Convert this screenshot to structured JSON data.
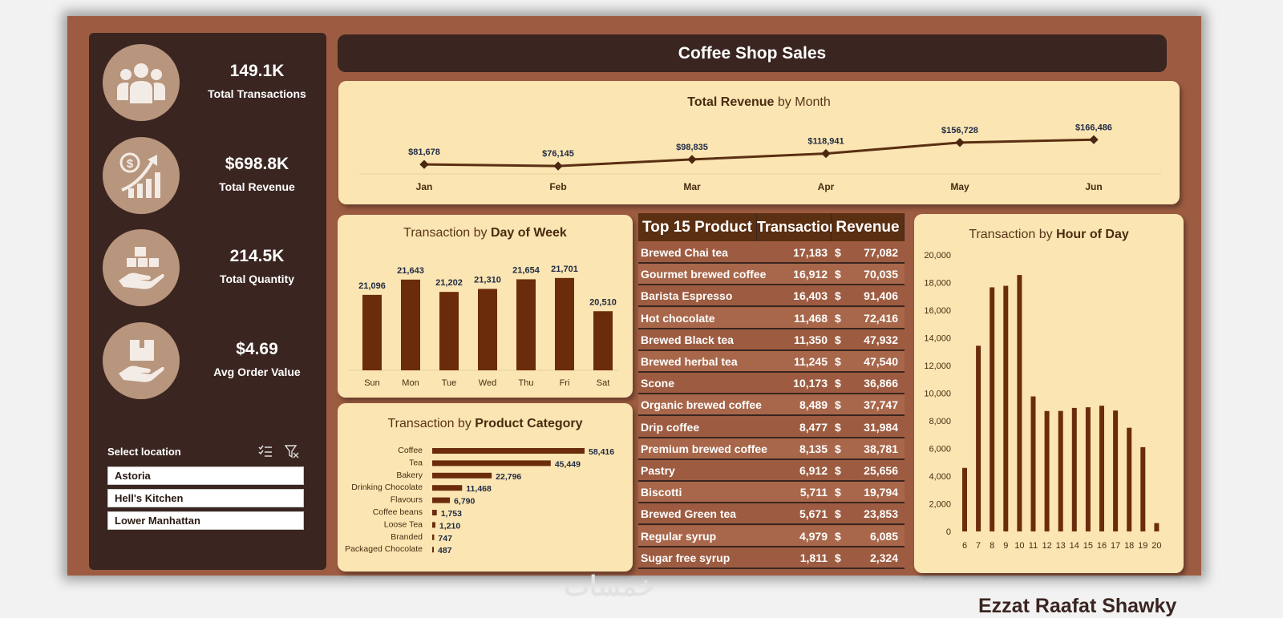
{
  "dashboard": {
    "title": "Coffee Shop Sales",
    "author": "Ezzat Raafat Shawky",
    "watermark": "خمسات"
  },
  "kpis": [
    {
      "value": "149.1K",
      "label": "Total Transactions",
      "icon": "people-icon"
    },
    {
      "value": "$698.8K",
      "label": "Total Revenue",
      "icon": "revenue-growth-icon"
    },
    {
      "value": "214.5K",
      "label": "Total Quantity",
      "icon": "boxes-in-hand-icon"
    },
    {
      "value": "$4.69",
      "label": "Avg Order Value",
      "icon": "package-in-hand-icon"
    }
  ],
  "slicer": {
    "title": "Select location",
    "items": [
      "Astoria",
      "Hell's Kitchen",
      "Lower Manhattan"
    ]
  },
  "colors": {
    "background": "#9d5c41",
    "panel": "#3a2520",
    "card": "#fbe5b2",
    "bar": "#6b2c0c",
    "icon_circle": "#b8957d"
  },
  "chart_data": [
    {
      "id": "revenue_by_month",
      "type": "line",
      "title_bold": "Total Revenue",
      "title_rest": " by Month",
      "categories": [
        "Jan",
        "Feb",
        "Mar",
        "Apr",
        "May",
        "Jun"
      ],
      "values": [
        81678,
        76145,
        98835,
        118941,
        156728,
        166486
      ],
      "labels": [
        "$81,678",
        "$76,145",
        "$98,835",
        "$118,941",
        "$156,728",
        "$166,486"
      ]
    },
    {
      "id": "transactions_by_day",
      "type": "bar",
      "title_rest": "Transaction by ",
      "title_bold": "Day of Week",
      "categories": [
        "Sun",
        "Mon",
        "Tue",
        "Wed",
        "Thu",
        "Fri",
        "Sat"
      ],
      "values": [
        21096,
        21643,
        21202,
        21310,
        21654,
        21701,
        20510
      ],
      "labels": [
        "21,096",
        "21,643",
        "21,202",
        "21,310",
        "21,654",
        "21,701",
        "20,510"
      ]
    },
    {
      "id": "transactions_by_category",
      "type": "bar",
      "orientation": "horizontal",
      "title_rest": "Transaction by ",
      "title_bold": "Product Category",
      "categories": [
        "Coffee",
        "Tea",
        "Bakery",
        "Drinking Chocolate",
        "Flavours",
        "Coffee beans",
        "Loose Tea",
        "Branded",
        "Packaged Chocolate"
      ],
      "values": [
        58416,
        45449,
        22796,
        11468,
        6790,
        1753,
        1210,
        747,
        487
      ],
      "labels": [
        "58,416",
        "45,449",
        "22,796",
        "11,468",
        "6,790",
        "1,753",
        "1,210",
        "747",
        "487"
      ]
    },
    {
      "id": "transactions_by_hour",
      "type": "bar",
      "title_rest": "Transaction by ",
      "title_bold": "Hour of Day",
      "categories": [
        "6",
        "7",
        "8",
        "9",
        "10",
        "11",
        "12",
        "13",
        "14",
        "15",
        "16",
        "17",
        "18",
        "19",
        "20"
      ],
      "values": [
        4594,
        13428,
        17654,
        17764,
        18545,
        9766,
        8708,
        8714,
        8933,
        8979,
        9093,
        8745,
        7498,
        6092,
        603
      ],
      "ylim": [
        0,
        20000
      ],
      "yticks": [
        "0",
        "2,000",
        "4,000",
        "6,000",
        "8,000",
        "10,000",
        "12,000",
        "14,000",
        "16,000",
        "18,000",
        "20,000"
      ]
    },
    {
      "id": "top_products",
      "type": "table",
      "headers": [
        "Top 15 Product",
        "Transactions",
        "Revenue"
      ],
      "currency": "$",
      "rows": [
        [
          "Brewed Chai tea",
          "17,183",
          "77,082"
        ],
        [
          "Gourmet brewed coffee",
          "16,912",
          "70,035"
        ],
        [
          "Barista Espresso",
          "16,403",
          "91,406"
        ],
        [
          "Hot chocolate",
          "11,468",
          "72,416"
        ],
        [
          "Brewed Black tea",
          "11,350",
          "47,932"
        ],
        [
          "Brewed herbal tea",
          "11,245",
          "47,540"
        ],
        [
          "Scone",
          "10,173",
          "36,866"
        ],
        [
          "Organic brewed coffee",
          "8,489",
          "37,747"
        ],
        [
          "Drip coffee",
          "8,477",
          "31,984"
        ],
        [
          "Premium brewed coffee",
          "8,135",
          "38,781"
        ],
        [
          "Pastry",
          "6,912",
          "25,656"
        ],
        [
          "Biscotti",
          "5,711",
          "19,794"
        ],
        [
          "Brewed Green tea",
          "5,671",
          "23,853"
        ],
        [
          "Regular syrup",
          "4,979",
          "6,085"
        ],
        [
          "Sugar free syrup",
          "1,811",
          "2,324"
        ]
      ]
    }
  ]
}
